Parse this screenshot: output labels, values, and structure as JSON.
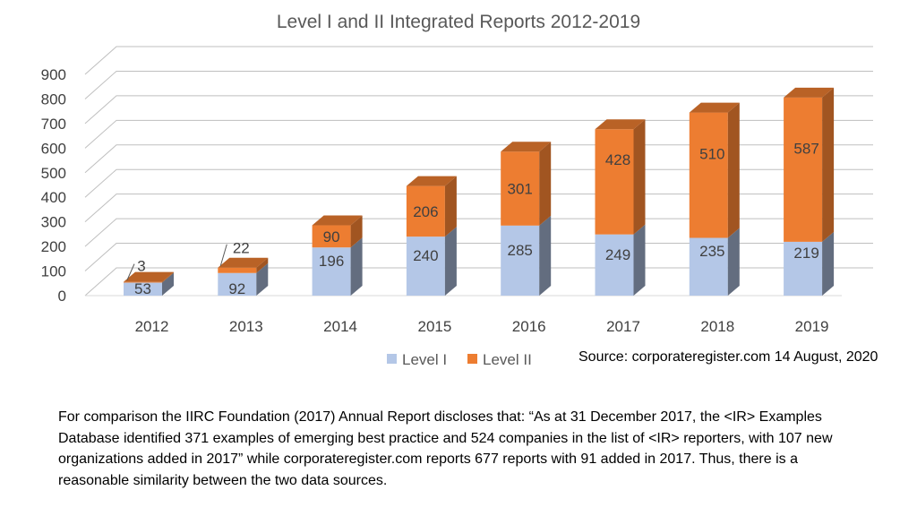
{
  "chart_data": {
    "type": "bar",
    "stacked": true,
    "style": "3d",
    "title": "Level I and II Integrated Reports 2012-2019",
    "categories": [
      "2012",
      "2013",
      "2014",
      "2015",
      "2016",
      "2017",
      "2018",
      "2019"
    ],
    "series": [
      {
        "name": "Level I",
        "color": "#B4C7E7",
        "values": [
          53,
          92,
          196,
          240,
          285,
          249,
          235,
          219
        ]
      },
      {
        "name": "Level II",
        "color": "#ED7D31",
        "values": [
          3,
          22,
          90,
          206,
          301,
          428,
          510,
          587
        ]
      }
    ],
    "ylim": [
      0,
      900
    ],
    "yticks": [
      "0",
      "100",
      "200",
      "300",
      "400",
      "500",
      "600",
      "700",
      "800",
      "900"
    ],
    "grid": true,
    "legend": "bottom-center",
    "xlabel": "",
    "ylabel": ""
  },
  "source": "Source: corporateregister.com 14 August, 2020",
  "footnote": "For comparison the IIRC Foundation (2017) Annual Report discloses that: “As at 31 December 2017, the <IR> Examples Database identified 371 examples of emerging best practice and 524 companies in the list of <IR> reporters, with 107 new organizations added in 2017” while corporateregister.com reports 677 reports with 91 added in 2017. Thus, there is a reasonable similarity between the two data sources."
}
